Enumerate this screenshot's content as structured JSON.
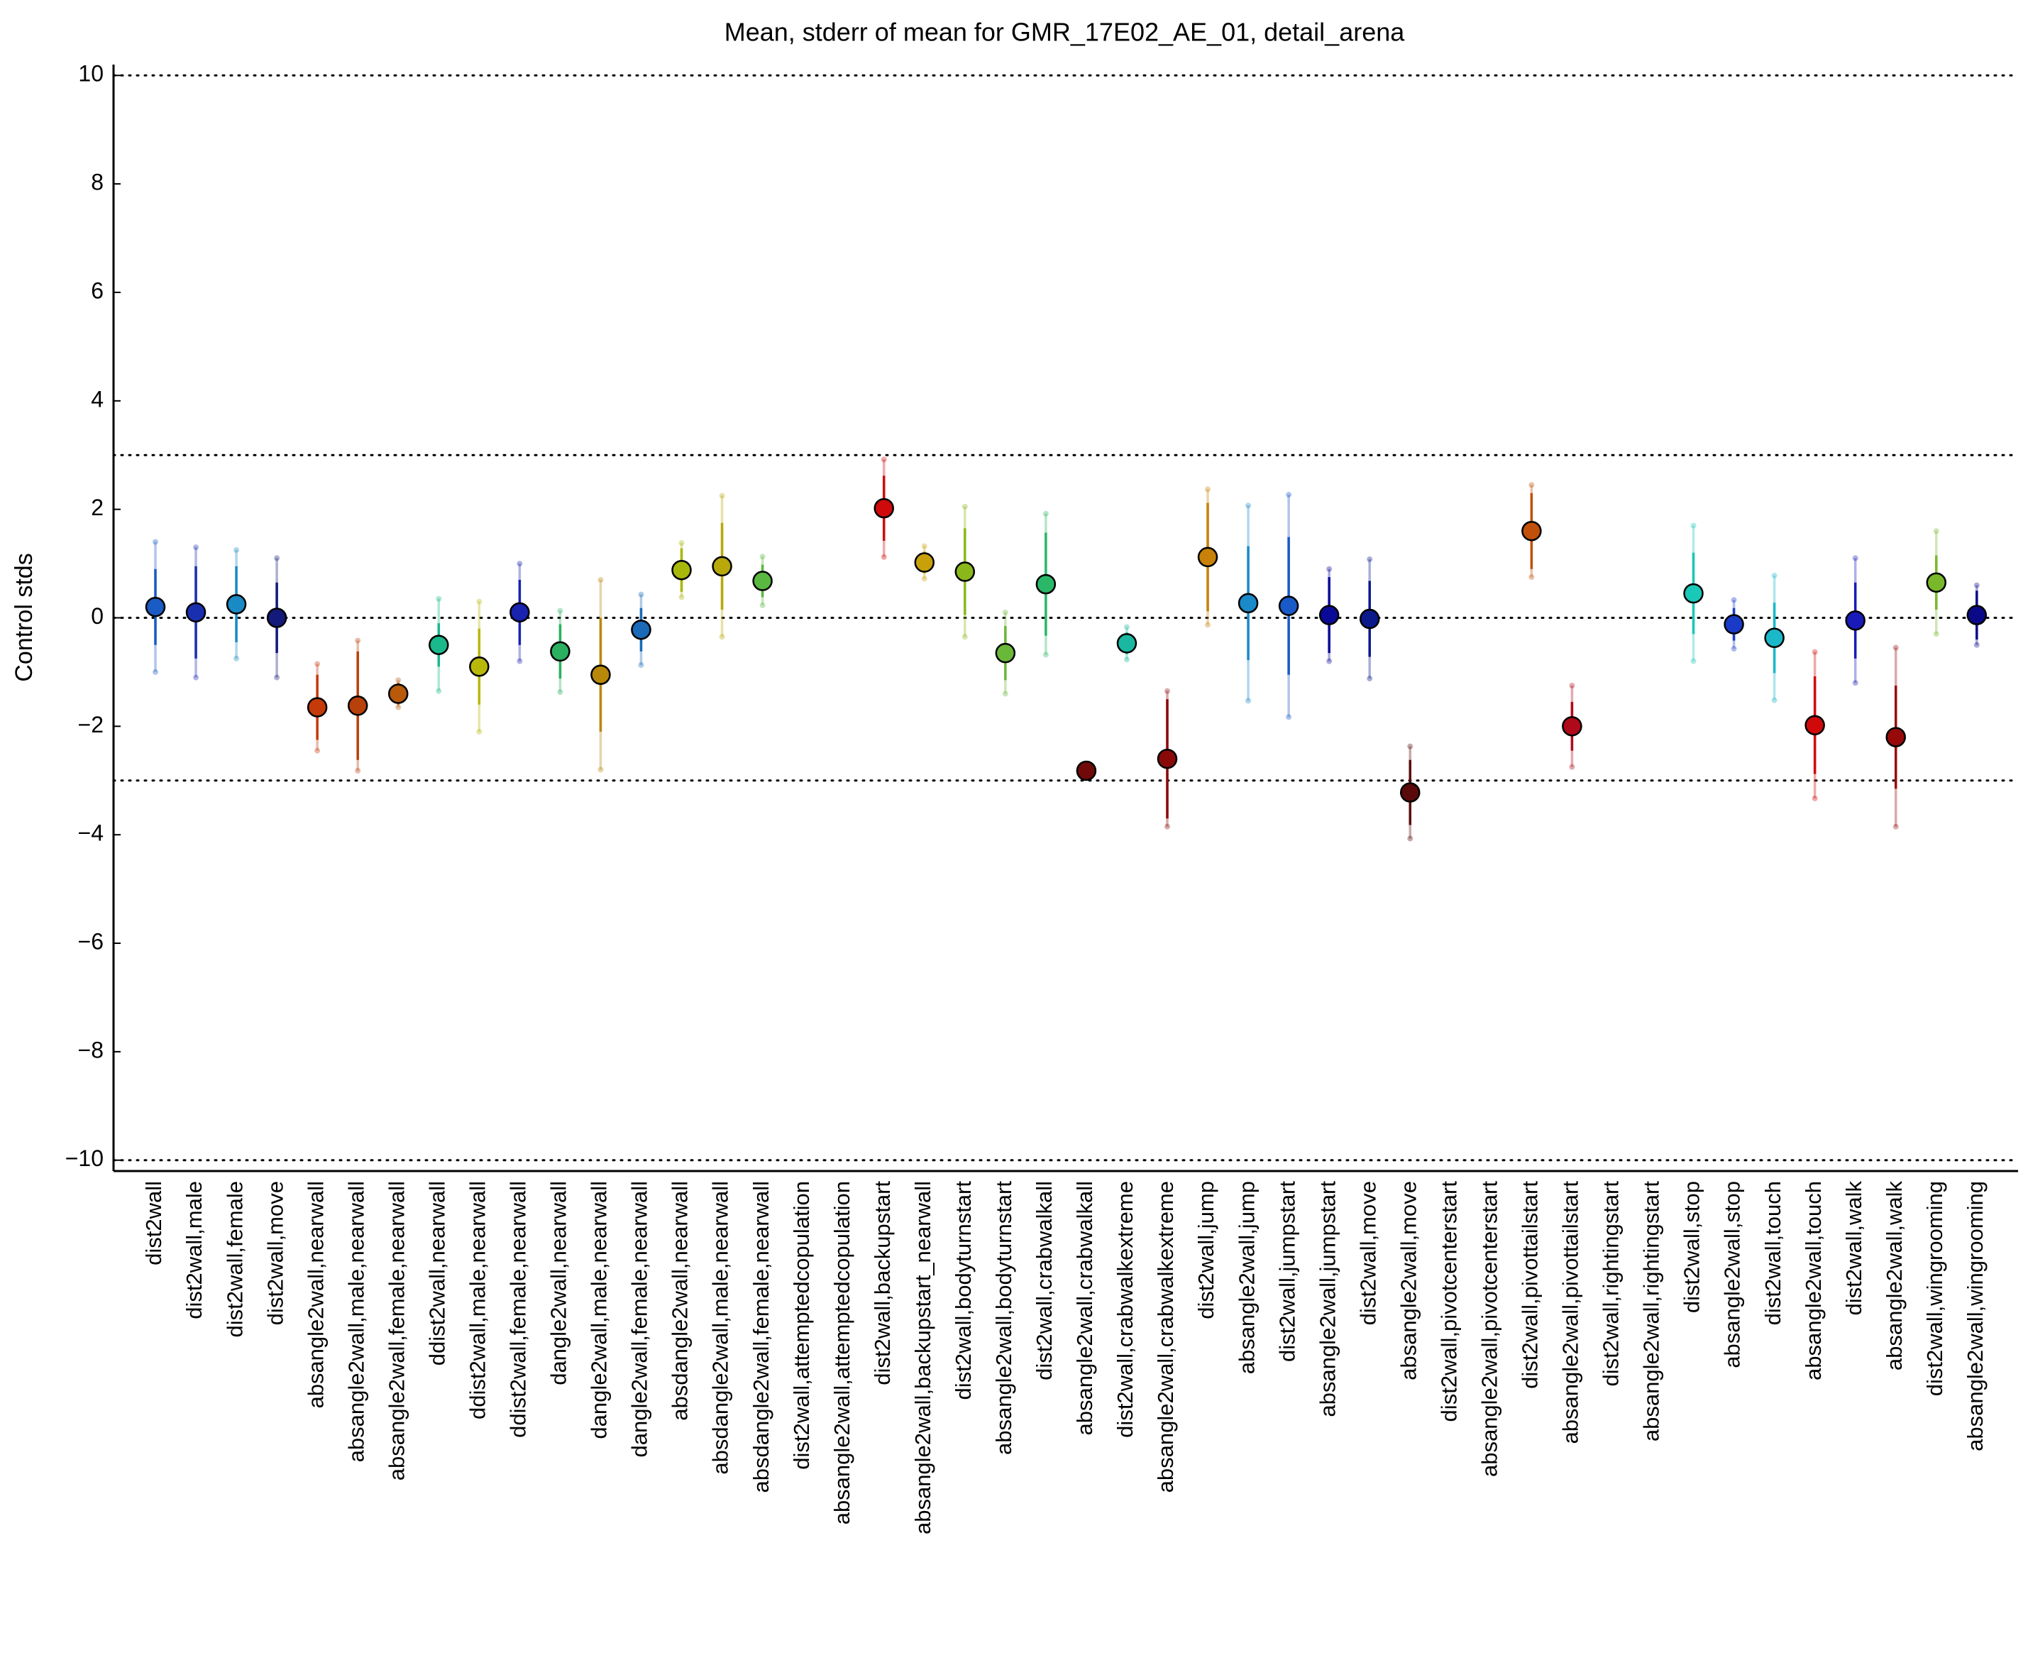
{
  "chart_data": {
    "type": "errorbar",
    "title": "Mean, stderr of mean for GMR_17E02_AE_01, detail_arena",
    "y_label": "Control stds",
    "categories": [
      "dist2wall",
      "dist2wall,male",
      "dist2wall,female",
      "dist2wall,move",
      "absangle2wall,nearwall",
      "absangle2wall,male,nearwall",
      "absangle2wall,female,nearwall",
      "ddist2wall,nearwall",
      "ddist2wall,male,nearwall",
      "ddist2wall,female,nearwall",
      "dangle2wall,nearwall",
      "dangle2wall,male,nearwall",
      "dangle2wall,female,nearwall",
      "absdangle2wall,nearwall",
      "absdangle2wall,male,nearwall",
      "absdangle2wall,female,nearwall",
      "dist2wall,attemptedcopulation",
      "absangle2wall,attemptedcopulation",
      "dist2wall,backupstart",
      "absangle2wall,backupstart_nearwall",
      "dist2wall,bodyturnstart",
      "absangle2wall,bodyturnstart",
      "dist2wall,crabwalkall",
      "absangle2wall,crabwalkall",
      "dist2wall,crabwalkextreme",
      "absangle2wall,crabwalkextreme",
      "dist2wall,jump",
      "absangle2wall,jump",
      "dist2wall,jumpstart",
      "absangle2wall,jumpstart",
      "dist2wall,move",
      "absangle2wall,move",
      "dist2wall,pivotcenterstart",
      "absangle2wall,pivotcenterstart",
      "dist2wall,pivottailstart",
      "absangle2wall,pivottailstart",
      "dist2wall,rightingstart",
      "absangle2wall,rightingstart",
      "dist2wall,stop",
      "absangle2wall,stop",
      "dist2wall,touch",
      "absangle2wall,touch",
      "dist2wall,walk",
      "absangle2wall,walk",
      "dist2wall,wingrooming",
      "absangle2wall,wingrooming"
    ],
    "values": [
      0.2,
      0.1,
      0.25,
      0.0,
      -1.65,
      -1.62,
      -1.4,
      -0.5,
      -0.9,
      0.1,
      -0.62,
      -1.05,
      -0.22,
      0.88,
      0.95,
      0.68,
      null,
      null,
      2.02,
      1.02,
      0.85,
      -0.65,
      0.62,
      -2.82,
      -0.47,
      -2.6,
      1.12,
      0.27,
      0.22,
      0.05,
      -0.02,
      -3.22,
      null,
      null,
      1.6,
      -2.0,
      null,
      null,
      0.45,
      -0.12,
      -0.37,
      -1.98,
      -0.05,
      -2.2,
      0.65,
      0.05
    ],
    "stderr": [
      0.7,
      0.85,
      0.7,
      0.65,
      0.6,
      1.0,
      0.2,
      0.4,
      0.7,
      0.6,
      0.5,
      1.05,
      0.4,
      0.4,
      0.8,
      0.3,
      null,
      null,
      0.6,
      0.2,
      0.8,
      0.5,
      0.95,
      0.05,
      0.2,
      1.1,
      1.0,
      1.05,
      1.27,
      0.7,
      0.7,
      0.6,
      null,
      null,
      0.7,
      0.45,
      null,
      null,
      0.75,
      0.3,
      0.65,
      0.9,
      0.7,
      0.95,
      0.5,
      0.45
    ],
    "spread": [
      1.2,
      1.2,
      1.0,
      1.1,
      0.8,
      1.2,
      0.25,
      0.85,
      1.2,
      0.9,
      0.75,
      1.75,
      0.65,
      0.5,
      1.3,
      0.45,
      null,
      null,
      0.9,
      0.3,
      1.2,
      0.75,
      1.3,
      0.08,
      0.3,
      1.25,
      1.25,
      1.8,
      2.05,
      0.85,
      1.1,
      0.85,
      null,
      null,
      0.85,
      0.75,
      null,
      null,
      1.25,
      0.45,
      1.15,
      1.35,
      1.15,
      1.65,
      0.95,
      0.55
    ],
    "colors": [
      "#1a5bc4",
      "#1a2fb0",
      "#1a8ac4",
      "#141a7a",
      "#c43a0a",
      "#b8400a",
      "#b85a0a",
      "#1ab88a",
      "#b8b80a",
      "#1a22b0",
      "#2ab060",
      "#b8880a",
      "#1a6ab8",
      "#a8b80a",
      "#b8a80a",
      "#5ab840",
      "#999999",
      "#999999",
      "#d00a0a",
      "#c8a00a",
      "#8ab81a",
      "#6ab83a",
      "#2ab868",
      "#700a0a",
      "#1ab8a0",
      "#8a0a0a",
      "#c8820a",
      "#1a8ac8",
      "#1a5ac8",
      "#0a0a98",
      "#0a1a8a",
      "#5a0a0a",
      "#999999",
      "#999999",
      "#c0500a",
      "#b00a1a",
      "#999999",
      "#999999",
      "#1ac8b8",
      "#1a3ac8",
      "#1ab8c8",
      "#d00a0a",
      "#1a1ab8",
      "#980a0a",
      "#78b82a",
      "#0a0a88"
    ],
    "ylim": [
      -10.2,
      10.2
    ],
    "yticks": [
      {
        "value": -10,
        "label": "−10"
      },
      {
        "value": -8,
        "label": "−8"
      },
      {
        "value": -6,
        "label": "−6"
      },
      {
        "value": -4,
        "label": "−4"
      },
      {
        "value": -2,
        "label": "−2"
      },
      0,
      2,
      4,
      6,
      8,
      10
    ],
    "reference_lines": [
      10,
      3,
      0,
      -3,
      -10
    ]
  }
}
